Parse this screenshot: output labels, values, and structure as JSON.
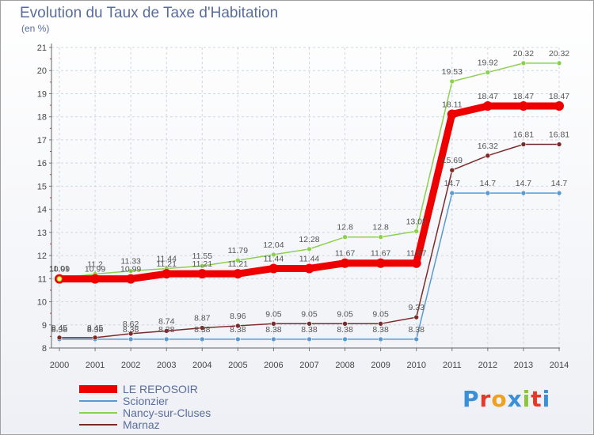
{
  "header": {
    "title": "Evolution du Taux de Taxe d'Habitation",
    "unit": "(en %)"
  },
  "logo": {
    "text": "Proxiti",
    "colors": [
      "#3a8fd6",
      "#e2392a",
      "#f0a020",
      "#3a8fd6",
      "#8cc43c",
      "#e2392a",
      "#3a8fd6"
    ]
  },
  "chart_data": {
    "type": "line",
    "title": "Evolution du Taux de Taxe d'Habitation",
    "ylabel": "(en %)",
    "xlabel": "",
    "x": [
      "2000",
      "2001",
      "2002",
      "2003",
      "2004",
      "2005",
      "2006",
      "2007",
      "2008",
      "2009",
      "2010",
      "2011",
      "2012",
      "2013",
      "2014"
    ],
    "ylim": [
      8,
      21
    ],
    "yticks": [
      "8",
      "9",
      "10",
      "11",
      "12",
      "13",
      "14",
      "15",
      "16",
      "17",
      "18",
      "19",
      "20",
      "21"
    ],
    "grid": true,
    "legend_position": "bottom-left",
    "series": [
      {
        "name": "Scionzier",
        "color": "#5b9ad0",
        "values": [
          8.38,
          8.38,
          8.38,
          8.38,
          8.38,
          8.38,
          8.38,
          8.38,
          8.38,
          8.38,
          8.38,
          14.7,
          14.7,
          14.7,
          14.7
        ],
        "labels": [
          "8.38",
          "8.38",
          "8.38",
          "8.38",
          "8.38",
          "8.38",
          "8.38",
          "8.38",
          "8.38",
          "8.38",
          "8.38",
          "14.7",
          "14.7",
          "14.7",
          "14.7"
        ]
      },
      {
        "name": "Marnaz",
        "color": "#7b2a2a",
        "values": [
          8.45,
          8.45,
          8.62,
          8.74,
          8.87,
          8.96,
          9.05,
          9.05,
          9.05,
          9.05,
          9.33,
          15.69,
          16.32,
          16.81,
          16.81
        ],
        "labels": [
          "8.45",
          "8.45",
          "8.62",
          "8.74",
          "8.87",
          "8.96",
          "9.05",
          "9.05",
          "9.05",
          "9.05",
          "9.33",
          "15.69",
          "16.32",
          "16.81",
          "16.81"
        ]
      },
      {
        "name": "Nancy-sur-Cluses",
        "color": "#8cd050",
        "values": [
          11.01,
          11.2,
          11.33,
          11.44,
          11.55,
          11.79,
          12.04,
          12.28,
          12.8,
          12.8,
          13.05,
          19.53,
          19.92,
          20.32,
          20.32
        ],
        "labels": [
          "11.01",
          "11.2",
          "11.33",
          "11.44",
          "11.55",
          "11.79",
          "12.04",
          "12.28",
          "12.8",
          "12.8",
          "13.05",
          "19.53",
          "19.92",
          "20.32",
          "20.32"
        ]
      },
      {
        "name": "LE REPOSOIR",
        "color": "#ee0000",
        "values": [
          10.99,
          10.99,
          10.99,
          11.21,
          11.21,
          11.21,
          11.44,
          11.44,
          11.67,
          11.67,
          11.67,
          18.11,
          18.47,
          18.47,
          18.47
        ],
        "labels": [
          "10.99",
          "10.99",
          "10.99",
          "11.21",
          "11.21",
          "11.21",
          "11.44",
          "11.44",
          "11.67",
          "11.67",
          "11.67",
          "18.11",
          "18.47",
          "18.47",
          "18.47"
        ]
      }
    ],
    "legend_order": [
      "LE REPOSOIR",
      "Scionzier",
      "Nancy-sur-Cluses",
      "Marnaz"
    ]
  }
}
